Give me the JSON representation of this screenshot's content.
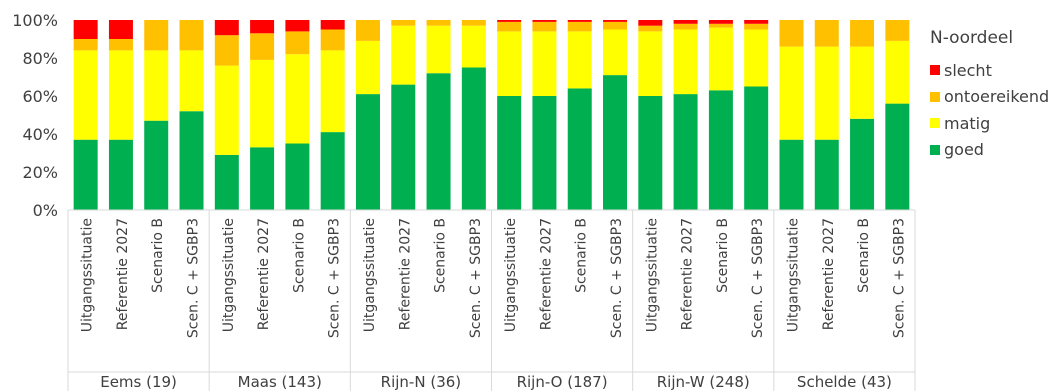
{
  "chart_data": {
    "type": "bar",
    "stacked": true,
    "percent": true,
    "ylim": [
      0,
      100
    ],
    "yticks": [
      "0%",
      "20%",
      "40%",
      "60%",
      "80%",
      "100%"
    ],
    "grid": false,
    "legend_position": "right",
    "legend_title": "N-oordeel",
    "scenarios": [
      "Uitgangssituatie",
      "Referentie 2027",
      "Scenario B",
      "Scen. C + SGBP3"
    ],
    "groups": [
      "Eems (19)",
      "Maas (143)",
      "Rijn-N (36)",
      "Rijn-O (187)",
      "Rijn-W (248)",
      "Schelde (43)"
    ],
    "series": [
      {
        "name": "goed",
        "color": "#00b050",
        "values": [
          37,
          37,
          47,
          52,
          29,
          33,
          35,
          41,
          61,
          66,
          72,
          75,
          60,
          60,
          64,
          71,
          60,
          61,
          63,
          65,
          37,
          37,
          48,
          56
        ]
      },
      {
        "name": "matig",
        "color": "#ffff00",
        "values": [
          47,
          47,
          37,
          32,
          47,
          46,
          47,
          43,
          28,
          31,
          25,
          22,
          34,
          34,
          30,
          24,
          34,
          34,
          33,
          30,
          49,
          49,
          38,
          33
        ]
      },
      {
        "name": "ontoereikend",
        "color": "#ffc000",
        "values": [
          6,
          6,
          16,
          16,
          16,
          14,
          12,
          11,
          11,
          3,
          3,
          3,
          5,
          5,
          5,
          4,
          3,
          3,
          2,
          3,
          14,
          14,
          14,
          11
        ]
      },
      {
        "name": "slecht",
        "color": "#ff0000",
        "values": [
          10,
          10,
          0,
          0,
          8,
          7,
          6,
          5,
          0,
          0,
          0,
          0,
          1,
          1,
          1,
          1,
          3,
          2,
          2,
          2,
          0,
          0,
          0,
          0
        ]
      }
    ]
  }
}
